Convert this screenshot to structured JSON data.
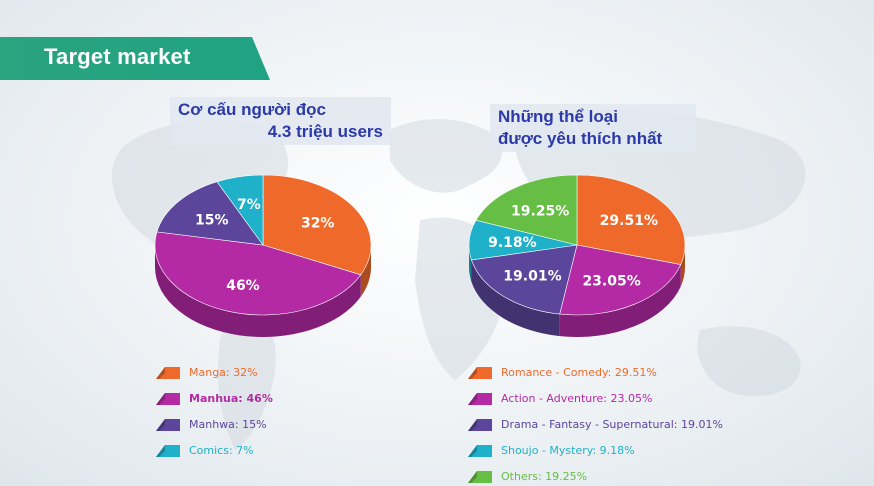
{
  "header": {
    "title": "Target market"
  },
  "colors": {
    "orange": "#ef6a2a",
    "magenta": "#b42aa5",
    "purple": "#5b469c",
    "cyan": "#1fb1c9",
    "green": "#66be45",
    "banner": "#22a382",
    "title_text": "#2b3aa8"
  },
  "chart_data": [
    {
      "type": "pie",
      "title_line1": "Cơ cấu người đọc",
      "title_line2": "4.3 triệu users",
      "slices": [
        {
          "label": "Manga: 32%",
          "value": 32,
          "display": "32%",
          "color": "#ef6a2a"
        },
        {
          "label": "Manhua: 46%",
          "value": 46,
          "display": "46%",
          "color": "#b42aa5"
        },
        {
          "label": "Manhwa: 15%",
          "value": 15,
          "display": "15%",
          "color": "#5b469c"
        },
        {
          "label": "Comics: 7%",
          "value": 7,
          "display": "7%",
          "color": "#1fb1c9"
        }
      ]
    },
    {
      "type": "pie",
      "title_line1": "Những thể loại",
      "title_line2": "được yêu thích nhất",
      "slices": [
        {
          "label": "Romance - Comedy: 29.51%",
          "value": 29.51,
          "display": "29.51%",
          "color": "#ef6a2a"
        },
        {
          "label": "Action - Adventure: 23.05%",
          "value": 23.05,
          "display": "23.05%",
          "color": "#b42aa5"
        },
        {
          "label": "Drama - Fantasy - Supernatural: 19.01%",
          "value": 19.01,
          "display": "19.01%",
          "color": "#5b469c"
        },
        {
          "label": "Shoujo - Mystery: 9.18%",
          "value": 9.18,
          "display": "9.18%",
          "color": "#1fb1c9"
        },
        {
          "label": "Others: 19.25%",
          "value": 19.25,
          "display": "19.25%",
          "color": "#66be45"
        }
      ]
    }
  ]
}
